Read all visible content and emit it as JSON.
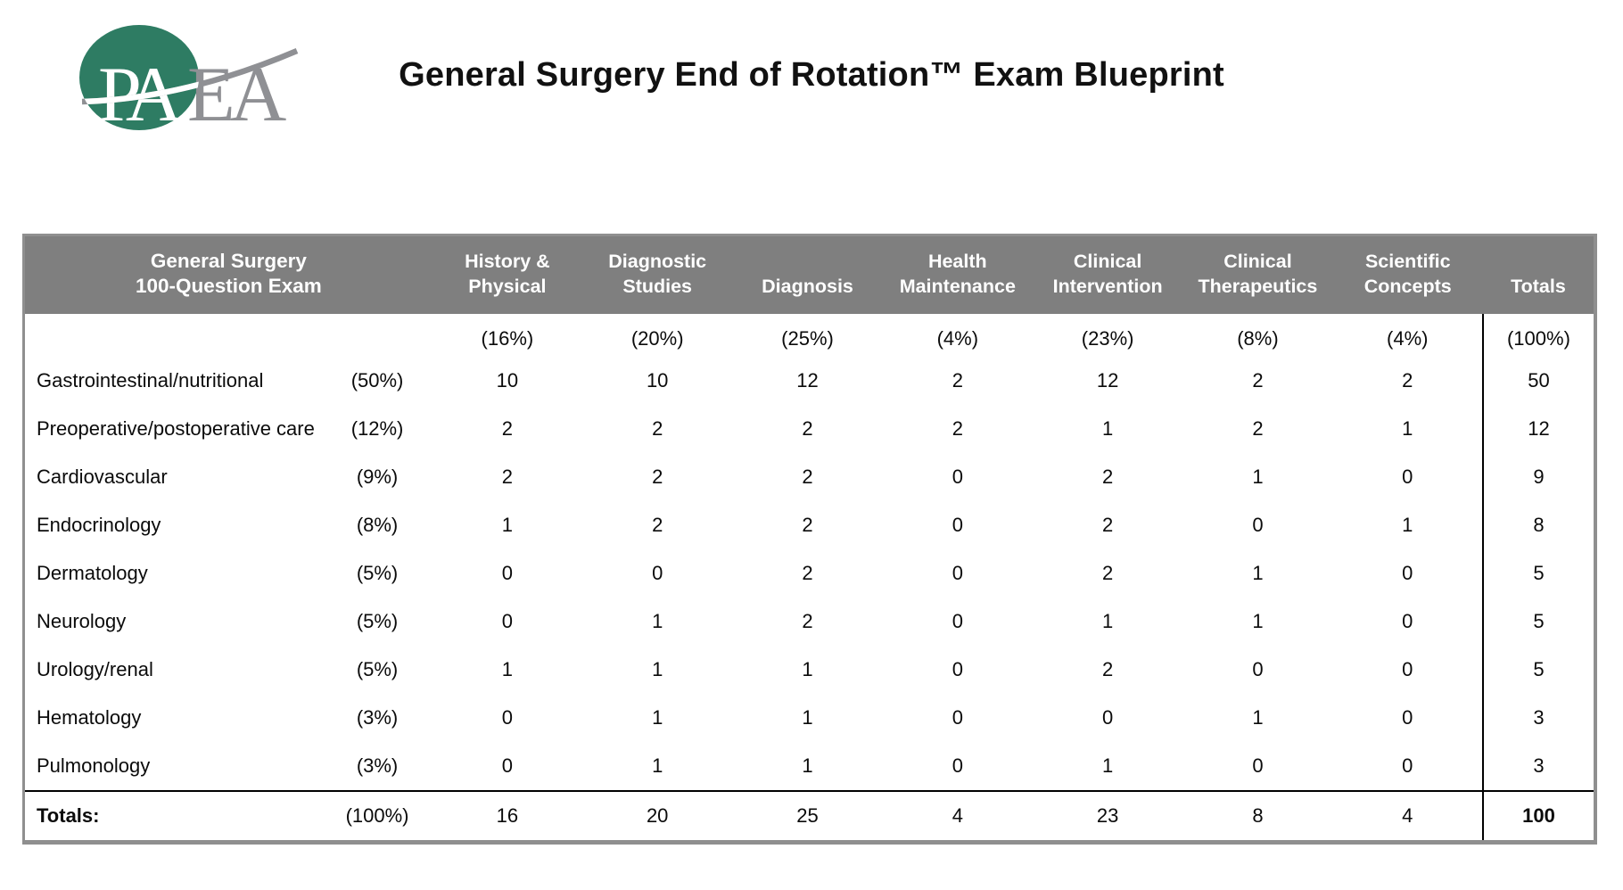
{
  "title": "General Surgery End of Rotation™ Exam Blueprint",
  "logo": {
    "letters_white": "PA",
    "letters_gray": "EA",
    "circle_color": "#2e7c63",
    "letter_gray_color": "#8f9094"
  },
  "colors": {
    "header_bg": "#7f7f7f",
    "header_text": "#ffffff",
    "body_text": "#0b0b0b",
    "outer_border": "#8f8f8f",
    "divider": "#000000"
  },
  "table": {
    "exam_label_line1": "General Surgery",
    "exam_label_line2": "100-Question Exam",
    "columns": [
      {
        "label": [
          "History &",
          "Physical"
        ],
        "pct": "(16%)"
      },
      {
        "label": [
          "Diagnostic",
          "Studies"
        ],
        "pct": "(20%)"
      },
      {
        "label": [
          "Diagnosis"
        ],
        "pct": "(25%)"
      },
      {
        "label": [
          "Health",
          "Maintenance"
        ],
        "pct": "(4%)"
      },
      {
        "label": [
          "Clinical",
          "Intervention"
        ],
        "pct": "(23%)"
      },
      {
        "label": [
          "Clinical",
          "Therapeutics"
        ],
        "pct": "(8%)"
      },
      {
        "label": [
          "Scientific",
          "Concepts"
        ],
        "pct": "(4%)"
      }
    ],
    "totals_column": {
      "label": "Totals",
      "pct": "(100%)"
    },
    "rows": [
      {
        "topic": "Gastrointestinal/nutritional",
        "pct": "(50%)",
        "values": [
          10,
          10,
          12,
          2,
          12,
          2,
          2
        ],
        "total": 50
      },
      {
        "topic": "Preoperative/postoperative care",
        "pct": "(12%)",
        "values": [
          2,
          2,
          2,
          2,
          1,
          2,
          1
        ],
        "total": 12
      },
      {
        "topic": "Cardiovascular",
        "pct": "(9%)",
        "values": [
          2,
          2,
          2,
          0,
          2,
          1,
          0
        ],
        "total": 9
      },
      {
        "topic": "Endocrinology",
        "pct": "(8%)",
        "values": [
          1,
          2,
          2,
          0,
          2,
          0,
          1
        ],
        "total": 8
      },
      {
        "topic": "Dermatology",
        "pct": "(5%)",
        "values": [
          0,
          0,
          2,
          0,
          2,
          1,
          0
        ],
        "total": 5
      },
      {
        "topic": "Neurology",
        "pct": "(5%)",
        "values": [
          0,
          1,
          2,
          0,
          1,
          1,
          0
        ],
        "total": 5
      },
      {
        "topic": "Urology/renal",
        "pct": "(5%)",
        "values": [
          1,
          1,
          1,
          0,
          2,
          0,
          0
        ],
        "total": 5
      },
      {
        "topic": "Hematology",
        "pct": "(3%)",
        "values": [
          0,
          1,
          1,
          0,
          0,
          1,
          0
        ],
        "total": 3
      },
      {
        "topic": "Pulmonology",
        "pct": "(3%)",
        "values": [
          0,
          1,
          1,
          0,
          1,
          0,
          0
        ],
        "total": 3
      }
    ],
    "totals_row": {
      "label": "Totals:",
      "pct": "(100%)",
      "values": [
        16,
        20,
        25,
        4,
        23,
        8,
        4
      ],
      "total": 100
    }
  }
}
